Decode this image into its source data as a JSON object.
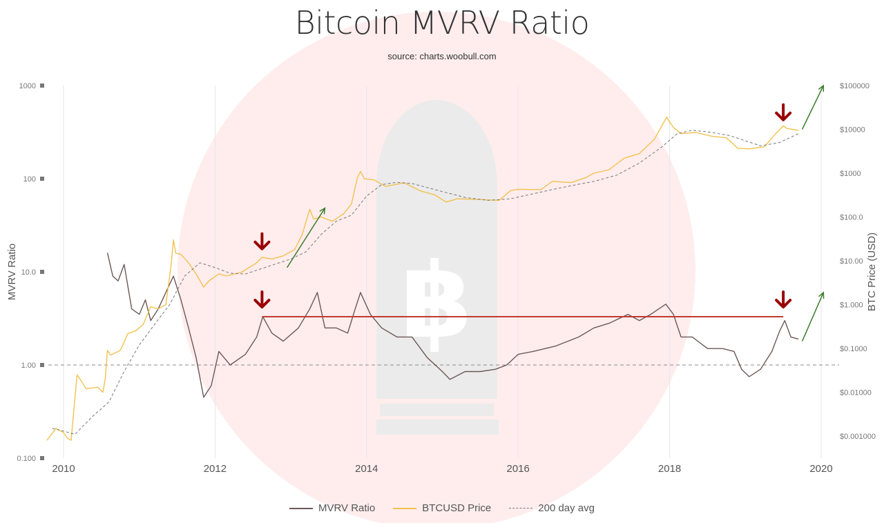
{
  "header": {
    "title": "Bitcoin MVRV Ratio",
    "subtitle": "source: charts.woobull.com"
  },
  "chart_data": {
    "type": "line",
    "title": "Bitcoin MVRV Ratio",
    "subtitle": "source: charts.woobull.com",
    "x_axis": {
      "label": "",
      "range": [
        2009.75,
        2020.2
      ],
      "ticks": [
        2010,
        2012,
        2014,
        2016,
        2018,
        2020
      ],
      "tick_labels": [
        "2010",
        "2012",
        "2014",
        "2016",
        "2018",
        "2020"
      ]
    },
    "y_axis_left": {
      "label": "MVRV Ratio",
      "scale": "log",
      "range": [
        0.1,
        1000
      ],
      "ticks": [
        0.1,
        1,
        10,
        100,
        1000
      ],
      "tick_labels": [
        "0.100",
        "1.00",
        "10.0",
        "100",
        "1000"
      ]
    },
    "y_axis_right": {
      "label": "BTC Price (USD)",
      "scale": "log",
      "range": [
        0.0005,
        200000
      ],
      "ticks": [
        0.001,
        0.01,
        0.1,
        1,
        10,
        100,
        1000,
        10000,
        100000
      ],
      "tick_labels": [
        "$0.001000",
        "$0.01000",
        "$0.1000",
        "$1.000",
        "$10.00",
        "$100.0",
        "$1000",
        "$10000",
        "$100000"
      ]
    },
    "reference_line": {
      "axis": "left",
      "value": 1.0,
      "style": "dashed"
    },
    "horizontal_marker": {
      "value": 3.3,
      "x_start": 2012.62,
      "x_end": 2019.5,
      "color": "#c0392b"
    },
    "grid": true,
    "legend_position": "bottom-center",
    "series": [
      {
        "name": "MVRV Ratio",
        "axis": "left",
        "color": "#6b5757",
        "points": [
          [
            2010.58,
            16
          ],
          [
            2010.65,
            9
          ],
          [
            2010.72,
            8
          ],
          [
            2010.8,
            12
          ],
          [
            2010.9,
            4
          ],
          [
            2011.0,
            3.5
          ],
          [
            2011.08,
            5
          ],
          [
            2011.15,
            3
          ],
          [
            2011.25,
            4
          ],
          [
            2011.35,
            6
          ],
          [
            2011.45,
            9
          ],
          [
            2011.55,
            5
          ],
          [
            2011.65,
            2.5
          ],
          [
            2011.75,
            1.2
          ],
          [
            2011.85,
            0.45
          ],
          [
            2011.95,
            0.6
          ],
          [
            2012.05,
            1.4
          ],
          [
            2012.2,
            1.0
          ],
          [
            2012.4,
            1.3
          ],
          [
            2012.55,
            2.0
          ],
          [
            2012.63,
            3.3
          ],
          [
            2012.75,
            2.2
          ],
          [
            2012.9,
            1.8
          ],
          [
            2013.1,
            2.5
          ],
          [
            2013.25,
            4.0
          ],
          [
            2013.35,
            6.0
          ],
          [
            2013.45,
            2.5
          ],
          [
            2013.6,
            2.5
          ],
          [
            2013.75,
            2.2
          ],
          [
            2013.85,
            4.0
          ],
          [
            2013.92,
            6.0
          ],
          [
            2014.05,
            3.5
          ],
          [
            2014.2,
            2.5
          ],
          [
            2014.4,
            2.0
          ],
          [
            2014.6,
            2.0
          ],
          [
            2014.8,
            1.2
          ],
          [
            2015.0,
            0.85
          ],
          [
            2015.1,
            0.7
          ],
          [
            2015.3,
            0.85
          ],
          [
            2015.5,
            0.85
          ],
          [
            2015.7,
            0.9
          ],
          [
            2015.85,
            1.0
          ],
          [
            2016.0,
            1.3
          ],
          [
            2016.2,
            1.4
          ],
          [
            2016.5,
            1.6
          ],
          [
            2016.8,
            2.0
          ],
          [
            2017.0,
            2.5
          ],
          [
            2017.2,
            2.8
          ],
          [
            2017.45,
            3.5
          ],
          [
            2017.6,
            3.0
          ],
          [
            2017.75,
            3.5
          ],
          [
            2017.95,
            4.5
          ],
          [
            2018.05,
            3.5
          ],
          [
            2018.15,
            2.0
          ],
          [
            2018.3,
            2.0
          ],
          [
            2018.5,
            1.5
          ],
          [
            2018.7,
            1.5
          ],
          [
            2018.85,
            1.4
          ],
          [
            2018.95,
            0.9
          ],
          [
            2019.05,
            0.75
          ],
          [
            2019.2,
            0.9
          ],
          [
            2019.35,
            1.4
          ],
          [
            2019.45,
            2.3
          ],
          [
            2019.52,
            3.0
          ],
          [
            2019.6,
            2.0
          ],
          [
            2019.7,
            1.9
          ]
        ]
      },
      {
        "name": "BTCUSD Price",
        "axis": "right",
        "color": "#f2c14e",
        "points": [
          [
            2009.78,
            0.0008
          ],
          [
            2009.9,
            0.0015
          ],
          [
            2010.0,
            0.0012
          ],
          [
            2010.05,
            0.0009
          ],
          [
            2010.1,
            0.0008
          ],
          [
            2010.12,
            0.002
          ],
          [
            2010.18,
            0.025
          ],
          [
            2010.3,
            0.012
          ],
          [
            2010.45,
            0.013
          ],
          [
            2010.52,
            0.01
          ],
          [
            2010.55,
            0.02
          ],
          [
            2010.58,
            0.09
          ],
          [
            2010.62,
            0.07
          ],
          [
            2010.75,
            0.09
          ],
          [
            2010.85,
            0.22
          ],
          [
            2010.95,
            0.25
          ],
          [
            2011.05,
            0.35
          ],
          [
            2011.15,
            0.9
          ],
          [
            2011.25,
            0.8
          ],
          [
            2011.35,
            1.0
          ],
          [
            2011.42,
            8
          ],
          [
            2011.45,
            30
          ],
          [
            2011.48,
            15
          ],
          [
            2011.55,
            14
          ],
          [
            2011.65,
            9
          ],
          [
            2011.75,
            5
          ],
          [
            2011.85,
            2.5
          ],
          [
            2011.92,
            3.5
          ],
          [
            2012.05,
            5
          ],
          [
            2012.15,
            4.5
          ],
          [
            2012.35,
            5.5
          ],
          [
            2012.55,
            9
          ],
          [
            2012.62,
            12
          ],
          [
            2012.75,
            11
          ],
          [
            2012.9,
            13
          ],
          [
            2013.05,
            18
          ],
          [
            2013.15,
            40
          ],
          [
            2013.25,
            150
          ],
          [
            2013.3,
            90
          ],
          [
            2013.4,
            100
          ],
          [
            2013.55,
            80
          ],
          [
            2013.7,
            120
          ],
          [
            2013.8,
            200
          ],
          [
            2013.88,
            800
          ],
          [
            2013.92,
            1100
          ],
          [
            2013.97,
            750
          ],
          [
            2014.1,
            700
          ],
          [
            2014.25,
            500
          ],
          [
            2014.5,
            600
          ],
          [
            2014.7,
            400
          ],
          [
            2014.9,
            320
          ],
          [
            2015.05,
            220
          ],
          [
            2015.2,
            260
          ],
          [
            2015.5,
            250
          ],
          [
            2015.75,
            240
          ],
          [
            2015.9,
            400
          ],
          [
            2016.0,
            430
          ],
          [
            2016.3,
            420
          ],
          [
            2016.45,
            650
          ],
          [
            2016.7,
            610
          ],
          [
            2016.9,
            800
          ],
          [
            2017.0,
            1000
          ],
          [
            2017.2,
            1200
          ],
          [
            2017.4,
            2200
          ],
          [
            2017.6,
            2800
          ],
          [
            2017.8,
            6000
          ],
          [
            2017.96,
            19000
          ],
          [
            2018.05,
            11000
          ],
          [
            2018.15,
            8000
          ],
          [
            2018.35,
            8500
          ],
          [
            2018.55,
            7000
          ],
          [
            2018.75,
            6400
          ],
          [
            2018.9,
            3700
          ],
          [
            2019.05,
            3600
          ],
          [
            2019.25,
            4000
          ],
          [
            2019.4,
            8000
          ],
          [
            2019.5,
            12000
          ],
          [
            2019.55,
            10500
          ],
          [
            2019.7,
            9500
          ]
        ]
      },
      {
        "name": "200 day avg",
        "axis": "right",
        "color": "#777777",
        "style": "dashed",
        "points": [
          [
            2009.85,
            0.0015
          ],
          [
            2010.0,
            0.0013
          ],
          [
            2010.15,
            0.0011
          ],
          [
            2010.4,
            0.003
          ],
          [
            2010.6,
            0.006
          ],
          [
            2010.8,
            0.03
          ],
          [
            2011.0,
            0.12
          ],
          [
            2011.2,
            0.35
          ],
          [
            2011.4,
            1.0
          ],
          [
            2011.6,
            4.5
          ],
          [
            2011.8,
            9
          ],
          [
            2012.0,
            7
          ],
          [
            2012.2,
            5.2
          ],
          [
            2012.4,
            5.0
          ],
          [
            2012.6,
            6.5
          ],
          [
            2012.8,
            8.5
          ],
          [
            2013.0,
            11
          ],
          [
            2013.2,
            16
          ],
          [
            2013.4,
            40
          ],
          [
            2013.6,
            80
          ],
          [
            2013.8,
            110
          ],
          [
            2014.0,
            300
          ],
          [
            2014.2,
            550
          ],
          [
            2014.4,
            620
          ],
          [
            2014.6,
            580
          ],
          [
            2014.8,
            470
          ],
          [
            2015.0,
            380
          ],
          [
            2015.3,
            280
          ],
          [
            2015.6,
            240
          ],
          [
            2015.9,
            260
          ],
          [
            2016.2,
            340
          ],
          [
            2016.5,
            440
          ],
          [
            2016.8,
            560
          ],
          [
            2017.0,
            650
          ],
          [
            2017.3,
            900
          ],
          [
            2017.6,
            1700
          ],
          [
            2017.9,
            4000
          ],
          [
            2018.1,
            8000
          ],
          [
            2018.3,
            9500
          ],
          [
            2018.5,
            8800
          ],
          [
            2018.8,
            7200
          ],
          [
            2019.0,
            5500
          ],
          [
            2019.2,
            4200
          ],
          [
            2019.45,
            5000
          ],
          [
            2019.7,
            8000
          ]
        ]
      }
    ],
    "arrows": [
      {
        "kind": "down",
        "color": "#990000",
        "x": 2012.62,
        "axis": "right",
        "value": 25
      },
      {
        "kind": "down",
        "color": "#990000",
        "x": 2012.62,
        "axis": "left",
        "value": 4.8
      },
      {
        "kind": "down",
        "color": "#990000",
        "x": 2019.5,
        "axis": "right",
        "value": 22000
      },
      {
        "kind": "down",
        "color": "#990000",
        "x": 2019.5,
        "axis": "left",
        "value": 4.8
      },
      {
        "kind": "up-right",
        "color": "#3a7d2a",
        "x1": 2012.95,
        "v1": 7,
        "x2": 2013.45,
        "v2": 160,
        "axis": "right"
      },
      {
        "kind": "up-right",
        "color": "#3a7d2a",
        "x1": 2019.75,
        "v1": 10000,
        "x2": 2020.03,
        "v2": 100000,
        "axis": "right"
      },
      {
        "kind": "up-right",
        "color": "#3a7d2a",
        "x1": 2019.75,
        "v1": 1.8,
        "x2": 2020.03,
        "v2": 6,
        "axis": "left"
      }
    ]
  },
  "legend": {
    "items": [
      {
        "label": "MVRV Ratio",
        "color": "#6b5757",
        "style": "solid"
      },
      {
        "label": "BTCUSD Price",
        "color": "#f2c14e",
        "style": "solid"
      },
      {
        "label": "200 day avg",
        "color": "#777777",
        "style": "dashed"
      }
    ]
  }
}
